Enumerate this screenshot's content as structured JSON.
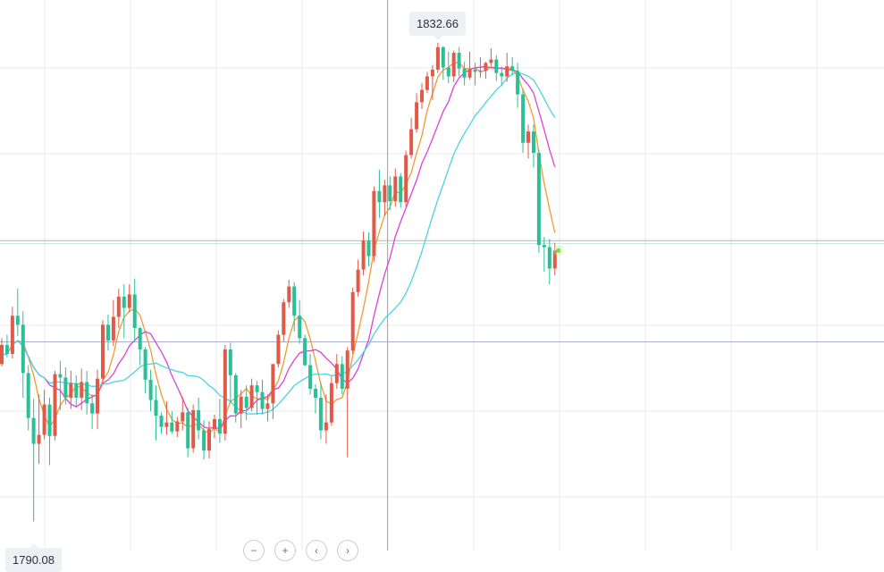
{
  "labels": {
    "high_label": "1832.66",
    "low_label": "1790.08"
  },
  "toolbar": {
    "buttons": [
      {
        "name": "zoom-out-button",
        "icon": "minus-icon",
        "glyph": "−"
      },
      {
        "name": "zoom-in-button",
        "icon": "plus-icon",
        "glyph": "+"
      },
      {
        "name": "move-left-button",
        "icon": "chevron-left-icon",
        "glyph": "‹"
      },
      {
        "name": "move-right-button",
        "icon": "chevron-right-icon",
        "glyph": "›"
      }
    ]
  },
  "colors": {
    "up": "#e05a48",
    "down": "#2bbf95",
    "ma_fast": "#f29a33",
    "ma_mid": "#e040d8",
    "ma_slow": "#49d3e6",
    "grid": "#e8eaee",
    "crosshair_v": "#9aa4d6",
    "crosshair_h": "#a7aec8",
    "last_price_line": "#9fd2c8"
  },
  "chart_data": {
    "type": "candlestick",
    "y_range": [
      1787.5,
      1836.5
    ],
    "series": [
      {
        "name": "",
        "kind": "ohlc",
        "values": [
          [
            1805.7,
            1806.9,
            1803.3,
            1804.1
          ],
          [
            1804.1,
            1806.4,
            1803.9,
            1805.8
          ],
          [
            1805.8,
            1806.7,
            1804.7,
            1805.0
          ],
          [
            1805.0,
            1809.2,
            1804.6,
            1808.4
          ],
          [
            1808.4,
            1810.8,
            1806.6,
            1807.6
          ],
          [
            1807.6,
            1808.8,
            1801.1,
            1803.3
          ],
          [
            1803.3,
            1804.0,
            1798.2,
            1799.3
          ],
          [
            1799.3,
            1801.0,
            1790.1,
            1797.0
          ],
          [
            1797.0,
            1801.4,
            1795.2,
            1797.8
          ],
          [
            1797.8,
            1801.8,
            1797.4,
            1800.5
          ],
          [
            1800.5,
            1801.1,
            1795.1,
            1797.7
          ],
          [
            1797.7,
            1803.5,
            1797.3,
            1803.2
          ],
          [
            1803.2,
            1804.4,
            1800.0,
            1802.9
          ],
          [
            1802.9,
            1803.8,
            1800.5,
            1801.1
          ],
          [
            1801.1,
            1803.5,
            1800.1,
            1802.4
          ],
          [
            1802.4,
            1803.1,
            1800.2,
            1801.1
          ],
          [
            1801.1,
            1803.7,
            1800.0,
            1802.5
          ],
          [
            1802.5,
            1803.5,
            1799.6,
            1800.6
          ],
          [
            1800.6,
            1801.4,
            1798.3,
            1799.7
          ],
          [
            1799.7,
            1803.6,
            1798.3,
            1802.8
          ],
          [
            1802.8,
            1808.0,
            1802.3,
            1807.6
          ],
          [
            1807.6,
            1808.5,
            1805.3,
            1806.2
          ],
          [
            1806.2,
            1809.8,
            1805.7,
            1808.3
          ],
          [
            1808.3,
            1810.8,
            1807.3,
            1810.1
          ],
          [
            1810.1,
            1811.2,
            1806.4,
            1809.1
          ],
          [
            1809.1,
            1811.2,
            1808.7,
            1810.3
          ],
          [
            1810.3,
            1811.7,
            1806.2,
            1807.3
          ],
          [
            1807.3,
            1807.4,
            1804.0,
            1805.4
          ],
          [
            1805.4,
            1805.6,
            1801.5,
            1802.7
          ],
          [
            1802.7,
            1803.6,
            1799.9,
            1800.9
          ],
          [
            1800.9,
            1802.2,
            1797.3,
            1799.5
          ],
          [
            1799.5,
            1799.8,
            1797.9,
            1798.5
          ],
          [
            1798.5,
            1800.8,
            1797.8,
            1798.9
          ],
          [
            1798.9,
            1799.9,
            1797.9,
            1798.1
          ],
          [
            1798.1,
            1799.4,
            1797.6,
            1799.0
          ],
          [
            1799.0,
            1801.2,
            1798.2,
            1799.8
          ],
          [
            1799.8,
            1800.2,
            1795.8,
            1796.6
          ],
          [
            1796.6,
            1800.5,
            1796.2,
            1800.0
          ],
          [
            1800.0,
            1801.1,
            1797.4,
            1798.2
          ],
          [
            1798.2,
            1799.1,
            1795.6,
            1796.4
          ],
          [
            1796.4,
            1799.0,
            1795.7,
            1798.3
          ],
          [
            1798.3,
            1799.6,
            1797.5,
            1799.2
          ],
          [
            1799.2,
            1801.0,
            1797.1,
            1797.9
          ],
          [
            1797.9,
            1805.8,
            1797.3,
            1805.4
          ],
          [
            1805.4,
            1806.0,
            1800.6,
            1803.1
          ],
          [
            1803.1,
            1803.3,
            1798.9,
            1799.7
          ],
          [
            1799.7,
            1801.8,
            1798.4,
            1801.2
          ],
          [
            1801.2,
            1802.2,
            1799.1,
            1800.2
          ],
          [
            1800.2,
            1802.8,
            1799.9,
            1802.2
          ],
          [
            1802.2,
            1802.6,
            1799.6,
            1801.6
          ],
          [
            1801.6,
            1802.7,
            1799.6,
            1800.1
          ],
          [
            1800.1,
            1801.4,
            1799.0,
            1800.6
          ],
          [
            1800.6,
            1803.0,
            1799.2,
            1804.1
          ],
          [
            1804.1,
            1807.1,
            1803.8,
            1806.7
          ],
          [
            1806.7,
            1809.9,
            1806.1,
            1809.6
          ],
          [
            1809.6,
            1811.6,
            1809.1,
            1811.0
          ],
          [
            1811.0,
            1811.4,
            1807.0,
            1808.4
          ],
          [
            1808.4,
            1809.8,
            1805.9,
            1806.4
          ],
          [
            1806.4,
            1806.7,
            1803.9,
            1804.0
          ],
          [
            1804.0,
            1805.0,
            1801.4,
            1801.9
          ],
          [
            1801.9,
            1802.3,
            1799.7,
            1801.1
          ],
          [
            1801.1,
            1802.4,
            1797.4,
            1798.2
          ],
          [
            1798.2,
            1801.4,
            1797.0,
            1798.9
          ],
          [
            1798.9,
            1803.0,
            1798.6,
            1802.4
          ],
          [
            1802.4,
            1805.0,
            1801.9,
            1804.1
          ],
          [
            1804.1,
            1804.8,
            1801.4,
            1801.9
          ],
          [
            1801.9,
            1805.6,
            1795.8,
            1805.3
          ],
          [
            1805.3,
            1810.9,
            1805.0,
            1810.5
          ],
          [
            1810.5,
            1813.4,
            1810.1,
            1812.5
          ],
          [
            1812.5,
            1815.9,
            1812.0,
            1815.1
          ],
          [
            1815.1,
            1815.8,
            1812.8,
            1813.7
          ],
          [
            1813.7,
            1819.9,
            1813.2,
            1819.5
          ],
          [
            1819.5,
            1821.4,
            1817.1,
            1818.5
          ],
          [
            1818.5,
            1820.5,
            1817.3,
            1820.0
          ],
          [
            1820.0,
            1820.8,
            1817.8,
            1818.6
          ],
          [
            1818.6,
            1821.5,
            1818.1,
            1820.8
          ],
          [
            1820.8,
            1821.1,
            1818.0,
            1818.5
          ],
          [
            1818.5,
            1823.1,
            1818.1,
            1822.7
          ],
          [
            1822.7,
            1826.0,
            1822.4,
            1825.0
          ],
          [
            1825.0,
            1828.2,
            1824.7,
            1827.4
          ],
          [
            1827.4,
            1829.1,
            1826.8,
            1828.5
          ],
          [
            1828.5,
            1830.1,
            1828.2,
            1829.7
          ],
          [
            1829.7,
            1830.7,
            1827.6,
            1830.3
          ],
          [
            1830.3,
            1832.7,
            1830.0,
            1832.3
          ],
          [
            1832.3,
            1832.4,
            1829.4,
            1830.5
          ],
          [
            1830.5,
            1831.9,
            1829.1,
            1829.7
          ],
          [
            1829.7,
            1832.0,
            1829.2,
            1831.8
          ],
          [
            1831.8,
            1832.3,
            1829.7,
            1830.4
          ],
          [
            1830.4,
            1831.0,
            1828.9,
            1829.6
          ],
          [
            1829.6,
            1831.9,
            1829.4,
            1830.3
          ],
          [
            1830.3,
            1830.9,
            1828.9,
            1830.1
          ],
          [
            1830.1,
            1831.4,
            1829.6,
            1830.2
          ],
          [
            1830.2,
            1831.0,
            1829.5,
            1830.9
          ],
          [
            1830.9,
            1832.2,
            1830.6,
            1831.2
          ],
          [
            1831.2,
            1831.6,
            1829.3,
            1830.0
          ],
          [
            1830.0,
            1830.6,
            1828.9,
            1829.7
          ],
          [
            1829.7,
            1831.8,
            1829.2,
            1830.6
          ],
          [
            1830.6,
            1831.4,
            1829.8,
            1830.2
          ],
          [
            1830.2,
            1830.9,
            1826.9,
            1828.1
          ],
          [
            1828.1,
            1828.6,
            1822.9,
            1823.8
          ],
          [
            1823.8,
            1825.4,
            1822.4,
            1824.8
          ],
          [
            1824.8,
            1825.4,
            1821.6,
            1822.9
          ],
          [
            1822.9,
            1823.2,
            1814.0,
            1814.7
          ],
          [
            1814.7,
            1815.4,
            1812.3,
            1814.5
          ],
          [
            1814.5,
            1815.2,
            1811.2,
            1812.6
          ],
          [
            1812.6,
            1814.9,
            1812.0,
            1814.2
          ]
        ]
      },
      {
        "name": "",
        "kind": "ma",
        "period": 5
      },
      {
        "name": "",
        "kind": "ma",
        "period": 10
      },
      {
        "name": "",
        "kind": "ma",
        "period": 20
      }
    ],
    "grid": true,
    "high": 1832.66,
    "low": 1790.08
  }
}
